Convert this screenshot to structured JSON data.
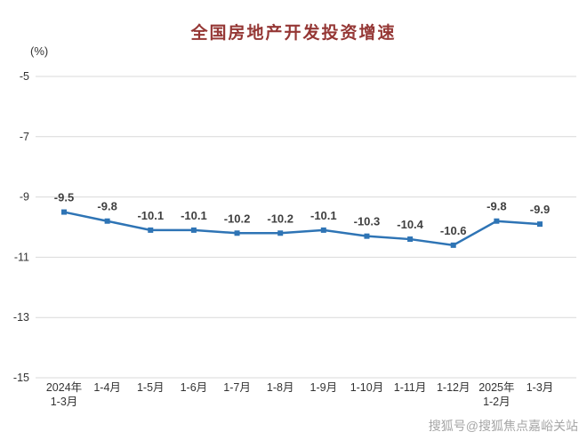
{
  "chart_data": {
    "type": "line",
    "title": "全国房地产开发投资增速",
    "unit_label": "(%)",
    "categories": [
      [
        "2024年",
        "1-3月"
      ],
      [
        "1-4月"
      ],
      [
        "1-5月"
      ],
      [
        "1-6月"
      ],
      [
        "1-7月"
      ],
      [
        "1-8月"
      ],
      [
        "1-9月"
      ],
      [
        "1-10月"
      ],
      [
        "1-11月"
      ],
      [
        "1-12月"
      ],
      [
        "2025年",
        "1-2月"
      ],
      [
        "1-3月"
      ]
    ],
    "values": [
      -9.5,
      -9.8,
      -10.1,
      -10.1,
      -10.2,
      -10.2,
      -10.1,
      -10.3,
      -10.4,
      -10.6,
      -9.8,
      -9.9
    ],
    "ylim": [
      -15,
      -5
    ],
    "yticks": [
      -5,
      -7,
      -9,
      -11,
      -13,
      -15
    ],
    "grid": true,
    "legend": "none",
    "line_color": "#2e74b5",
    "grid_color": "#d9d9d9",
    "title_color": "#953735",
    "label_color": "#404040"
  },
  "watermark": "搜狐号@搜狐焦点嘉峪关站"
}
